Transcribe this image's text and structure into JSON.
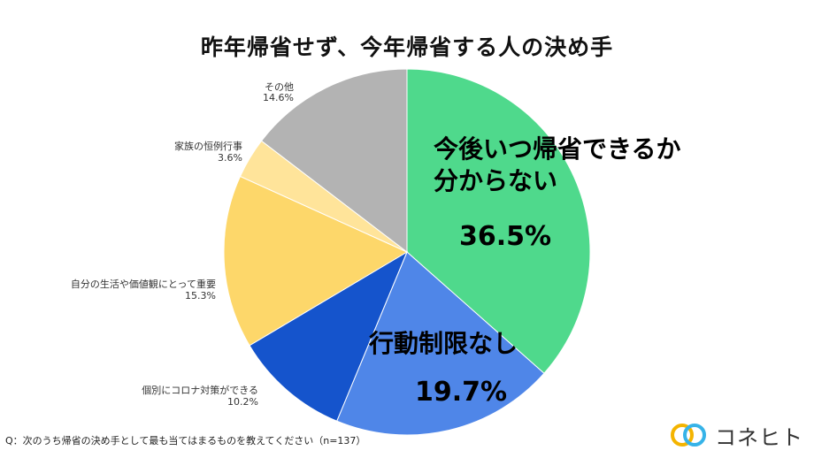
{
  "chart_data": {
    "type": "pie",
    "title": "昨年帰省せず、今年帰省する人の決め手",
    "slices": [
      {
        "label": "今後いつ帰省できるか分からない",
        "lines": [
          "今後いつ帰省できるか",
          "分からない"
        ],
        "value": 36.5,
        "value_label": "36.5%",
        "color": "#4fd98c"
      },
      {
        "label": "行動制限なし",
        "lines": [
          "行動制限なし"
        ],
        "value": 19.7,
        "value_label": "19.7%",
        "color": "#4f86e8"
      },
      {
        "label": "個別にコロナ対策ができる",
        "lines": [
          "個別にコロナ対策ができる"
        ],
        "value": 10.2,
        "value_label": "10.2%",
        "color": "#1554cc"
      },
      {
        "label": "自分の生活や価値観にとって重要",
        "lines": [
          "自分の生活や価値観にとって重要"
        ],
        "value": 15.3,
        "value_label": "15.3%",
        "color": "#fdd76a"
      },
      {
        "label": "家族の恒例行事",
        "lines": [
          "家族の恒例行事"
        ],
        "value": 3.6,
        "value_label": "3.6%",
        "color": "#ffe49a"
      },
      {
        "label": "その他",
        "lines": [
          "その他"
        ],
        "value": 14.6,
        "value_label": "14.6%",
        "color": "#b3b3b3"
      }
    ],
    "start": "12 o'clock",
    "direction": "clockwise",
    "legend": "none"
  },
  "footer": {
    "question": "Q：次のうち帰省の決め手として最も当てはまるものを教えてください（n=137）"
  },
  "brand": {
    "name": "コネヒト",
    "logo_icon": "two-interlocking-rings-icon",
    "logo_colors": [
      "#f4b400",
      "#36b3e8"
    ]
  }
}
